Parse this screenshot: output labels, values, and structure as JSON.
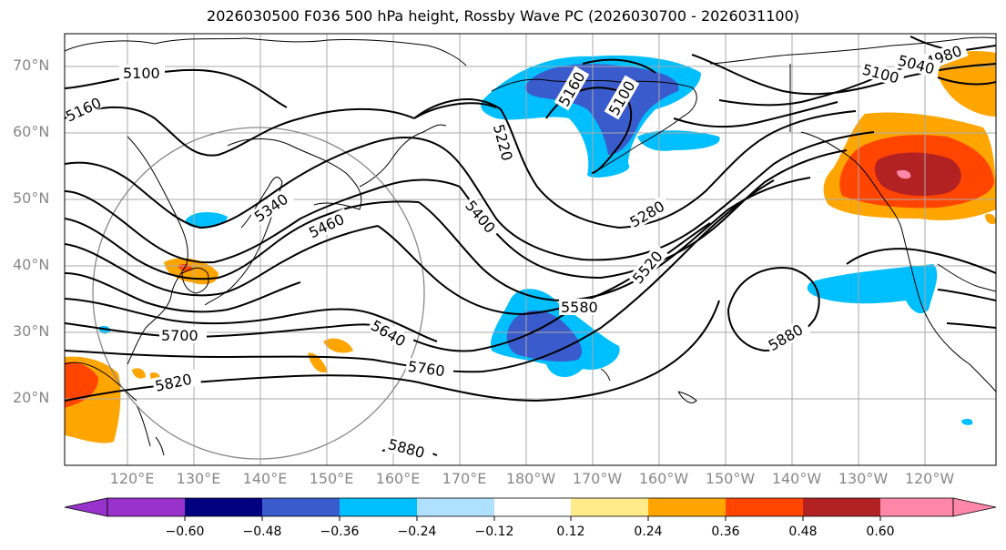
{
  "title": "2026030500 F036 500 hPa height, Rossby Wave PC (2026030700 - 2026031100)",
  "lat_labels": [
    "70°N",
    "60°N",
    "50°N",
    "40°N",
    "30°N",
    "20°N"
  ],
  "lon_labels": [
    "120°E",
    "130°E",
    "140°E",
    "150°E",
    "160°E",
    "170°E",
    "180°W",
    "170°W",
    "160°W",
    "150°W",
    "140°W",
    "130°W",
    "120°W"
  ],
  "contour_labels": [
    "5100",
    "5160",
    "4980",
    "5040",
    "5100",
    "5160",
    "5100",
    "5220",
    "5340",
    "5460",
    "5400",
    "5280",
    "5520",
    "5580",
    "5640",
    "5700",
    "5760",
    "5820",
    "5880",
    "5880"
  ],
  "colorbar": {
    "colors": [
      "#9932CC",
      "#000080",
      "#3A5BCB",
      "#00BFFF",
      "#B0E0FF",
      "#FFFFFF",
      "#FFEB8A",
      "#FFA500",
      "#FF4500",
      "#B22222",
      "#FF88AA"
    ],
    "labels": [
      "−0.60",
      "−0.48",
      "−0.36",
      "−0.24",
      "−0.12",
      "0.12",
      "0.24",
      "0.36",
      "0.48",
      "0.60"
    ],
    "under_color": "#9932CC",
    "over_color": "#FF88AA"
  }
}
